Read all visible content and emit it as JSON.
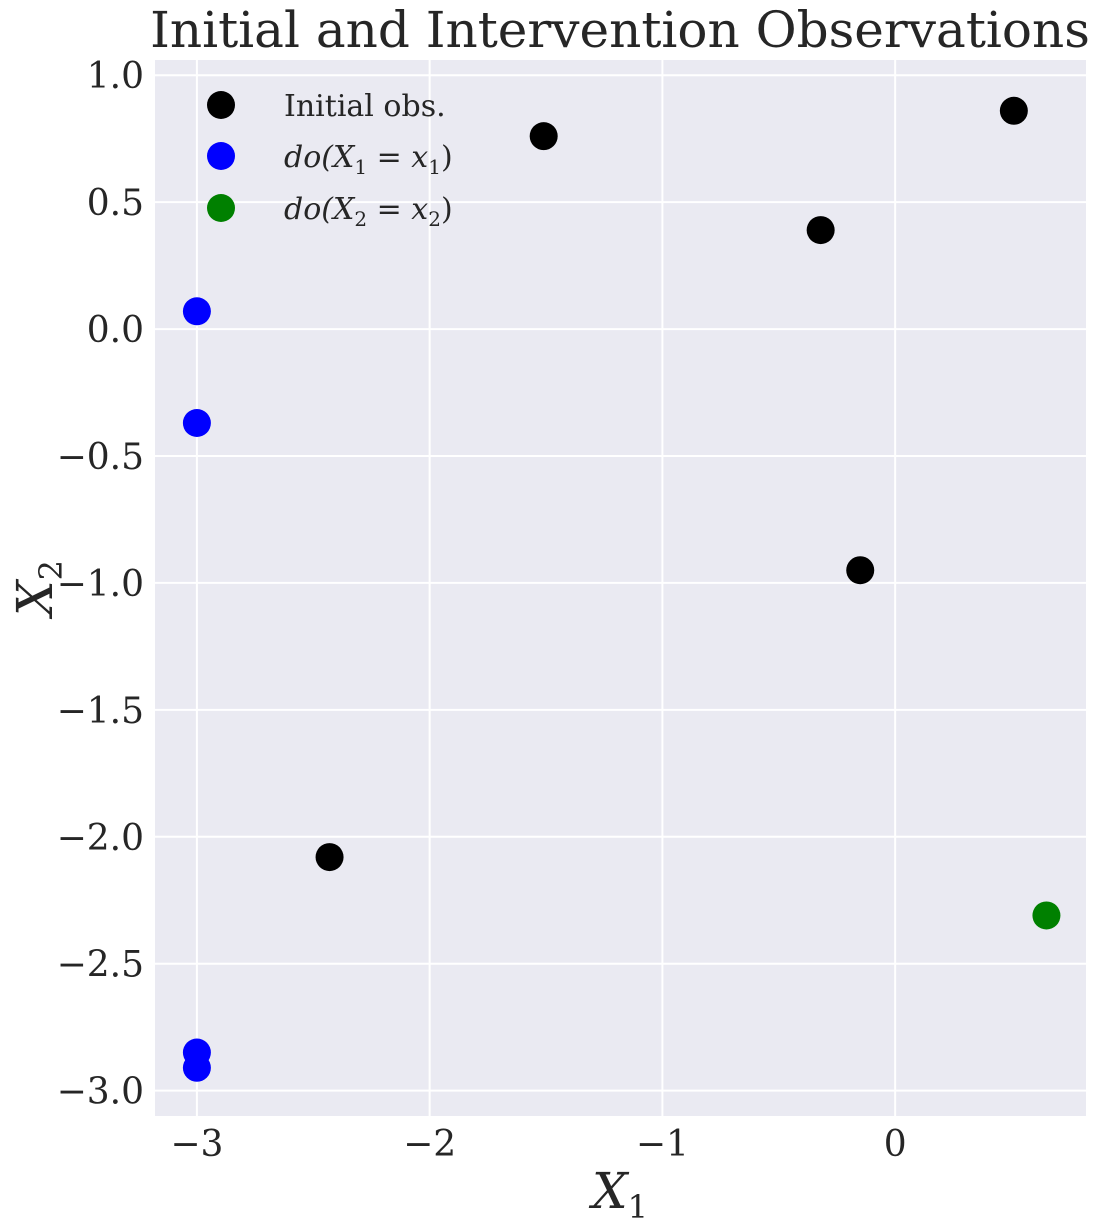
{
  "chart_data": {
    "type": "scatter",
    "title": "Initial and Intervention Observations",
    "xlabel": "X",
    "xlabel_sub": "1",
    "ylabel": "X",
    "ylabel_sub": "2",
    "xlim": [
      -3.18,
      0.82
    ],
    "ylim": [
      -3.1,
      1.06
    ],
    "xticks": [
      -3,
      -2,
      -1,
      0
    ],
    "xtick_labels": [
      "−3",
      "−2",
      "−1",
      "0"
    ],
    "yticks": [
      1.0,
      0.5,
      0.0,
      -0.5,
      -1.0,
      -1.5,
      -2.0,
      -2.5,
      -3.0
    ],
    "ytick_labels": [
      "1.0",
      "0.5",
      "0.0",
      "−0.5",
      "−1.0",
      "−1.5",
      "−2.0",
      "−2.5",
      "−3.0"
    ],
    "grid": true,
    "background": "#eaeaf2",
    "legend_position": "top-left",
    "series": [
      {
        "name": "Initial obs.",
        "color": "#000000",
        "points": [
          {
            "x": -2.43,
            "y": -2.08
          },
          {
            "x": -1.51,
            "y": 0.76
          },
          {
            "x": -0.32,
            "y": 0.39
          },
          {
            "x": -0.15,
            "y": -0.95
          },
          {
            "x": 0.51,
            "y": 0.86
          }
        ]
      },
      {
        "name": "do(X",
        "name_sub": "1",
        "name_rest": " = x",
        "name_sub2": "1",
        "name_end": ")",
        "color": "#0000ff",
        "points": [
          {
            "x": -3.0,
            "y": 0.07
          },
          {
            "x": -3.0,
            "y": -0.37
          },
          {
            "x": -3.0,
            "y": -2.85
          },
          {
            "x": -3.0,
            "y": -2.91
          }
        ]
      },
      {
        "name": "do(X",
        "name_sub": "2",
        "name_rest": " = x",
        "name_sub2": "2",
        "name_end": ")",
        "color": "#008000",
        "points": [
          {
            "x": 0.65,
            "y": -2.31
          }
        ]
      }
    ]
  }
}
